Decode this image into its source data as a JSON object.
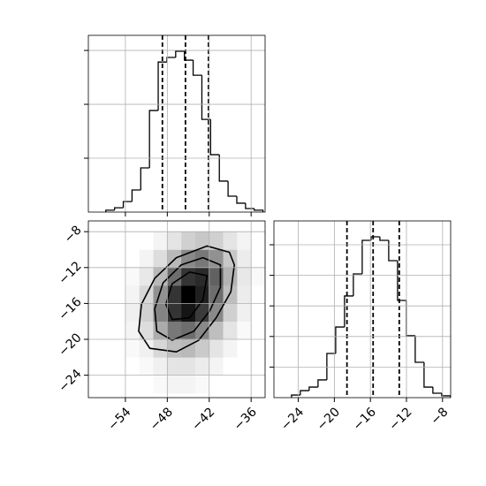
{
  "chart_data": [
    {
      "type": "histogram",
      "bins": [
        -56.8,
        -55.55,
        -54.3,
        -53.05,
        -51.8,
        -50.55,
        -49.3,
        -48.05,
        -46.8,
        -45.55,
        -44.3,
        -43.05,
        -41.8,
        -40.55,
        -39.3,
        -38.05,
        -36.8,
        -35.55,
        -34.3
      ],
      "counts": [
        7,
        16,
        39,
        82,
        164,
        377,
        557,
        574,
        597,
        564,
        508,
        344,
        213,
        115,
        59,
        33,
        13,
        7
      ],
      "quantiles": [
        -48.7,
        -45.4,
        -42.1
      ],
      "xlim": [
        -59.3,
        -34.0
      ],
      "ylim": [
        0,
        656
      ],
      "xticks": [
        -54,
        -48,
        -42,
        -36
      ],
      "yticks": [
        200,
        400,
        600
      ],
      "grid": true,
      "color": "#000000"
    },
    {
      "type": "hist2d",
      "xbins": [
        -56,
        -54,
        -52,
        -50,
        -48,
        -46,
        -44,
        -42,
        -40,
        -38,
        -36,
        -34
      ],
      "ybins": [
        -26,
        -24,
        -22,
        -20,
        -18,
        -16,
        -14,
        -12,
        -10,
        -8
      ],
      "counts": [
        [
          0,
          0,
          0,
          1,
          2,
          2,
          1,
          0,
          0,
          0,
          0
        ],
        [
          0,
          0,
          1,
          3,
          6,
          6,
          4,
          2,
          0,
          0,
          0
        ],
        [
          0,
          1,
          3,
          10,
          18,
          20,
          14,
          6,
          2,
          0,
          0
        ],
        [
          0,
          2,
          8,
          25,
          45,
          50,
          38,
          18,
          6,
          1,
          0
        ],
        [
          0,
          3,
          12,
          40,
          75,
          90,
          72,
          38,
          12,
          3,
          0
        ],
        [
          0,
          2,
          10,
          35,
          75,
          100,
          85,
          50,
          18,
          4,
          0
        ],
        [
          0,
          1,
          5,
          20,
          50,
          75,
          80,
          55,
          22,
          5,
          1
        ],
        [
          0,
          0,
          2,
          8,
          20,
          38,
          45,
          35,
          15,
          4,
          0
        ],
        [
          0,
          0,
          0,
          2,
          6,
          12,
          15,
          12,
          6,
          2,
          0
        ]
      ],
      "contours": [
        {
          "x": [
            -39.1,
            -38.4,
            -38.9,
            -41.0,
            -43.5,
            -46.7,
            -50.5,
            -52.1,
            -51.7,
            -49.8,
            -46.7,
            -42.3
          ],
          "y": [
            -10.3,
            -11.7,
            -14.7,
            -17.6,
            -20.1,
            -21.4,
            -21.0,
            -19.1,
            -16.1,
            -13.2,
            -10.9,
            -9.6
          ]
        },
        {
          "x": [
            -40.4,
            -40.4,
            -41.9,
            -44.2,
            -47.3,
            -49.5,
            -49.8,
            -48.6,
            -46.0,
            -42.9
          ],
          "y": [
            -11.7,
            -14.2,
            -16.8,
            -19.1,
            -20.1,
            -19.1,
            -16.6,
            -13.7,
            -11.7,
            -10.9
          ]
        },
        {
          "x": [
            -42.3,
            -42.9,
            -44.8,
            -47.3,
            -48.2,
            -47.3,
            -44.8
          ],
          "y": [
            -12.9,
            -15.6,
            -17.6,
            -17.8,
            -16.1,
            -13.8,
            -12.5
          ]
        }
      ],
      "xlim": [
        -59.3,
        -34.0
      ],
      "ylim": [
        -26.5,
        -6.8
      ],
      "xticks": [
        {
          "value": -54,
          "label": "−54"
        },
        {
          "value": -48,
          "label": "−48"
        },
        {
          "value": -42,
          "label": "−42"
        },
        {
          "value": -36,
          "label": "−36"
        }
      ],
      "yticks": [
        {
          "value": -8,
          "label": "−8"
        },
        {
          "value": -12,
          "label": "−12"
        },
        {
          "value": -16,
          "label": "−16"
        },
        {
          "value": -20,
          "label": "−20"
        },
        {
          "value": -24,
          "label": "−24"
        }
      ],
      "grid": true,
      "color": "#000000"
    },
    {
      "type": "histogram",
      "bins": [
        -24.75,
        -23.77,
        -22.79,
        -21.81,
        -20.83,
        -19.85,
        -18.87,
        -17.89,
        -16.91,
        -15.93,
        -14.95,
        -13.97,
        -12.99,
        -12.01,
        -11.03,
        -10.05,
        -9.07,
        -8.09,
        -7.11
      ],
      "counts": [
        17,
        46,
        69,
        116,
        289,
        462,
        665,
        809,
        1029,
        1052,
        1029,
        896,
        636,
        405,
        231,
        69,
        29,
        12
      ],
      "quantiles": [
        -18.6,
        -15.7,
        -12.8
      ],
      "xlim": [
        -26.7,
        -7.1
      ],
      "ylim": [
        0,
        1156
      ],
      "xticks": [
        {
          "value": -24,
          "label": "−24"
        },
        {
          "value": -20,
          "label": "−20"
        },
        {
          "value": -16,
          "label": "−16"
        },
        {
          "value": -12,
          "label": "−12"
        },
        {
          "value": -8,
          "label": "−8"
        }
      ],
      "yticks": [
        200,
        400,
        600,
        800,
        1000
      ],
      "grid": true,
      "color": "#000000"
    }
  ]
}
